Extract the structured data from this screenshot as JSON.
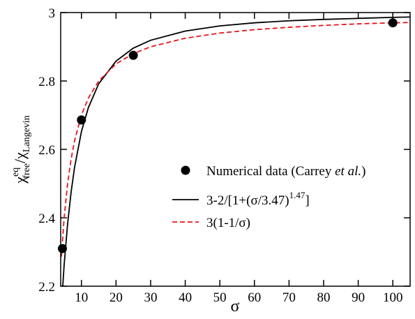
{
  "chart_data": {
    "type": "scatter+line",
    "xlabel": "σ",
    "ylabel": [
      "χ",
      "eq",
      "free",
      "/χ",
      "Langevin"
    ],
    "xlim": [
      4,
      105
    ],
    "ylim": [
      2.2,
      3
    ],
    "xticks": [
      10,
      20,
      30,
      40,
      50,
      60,
      70,
      80,
      90,
      100
    ],
    "yticks": [
      2.2,
      2.4,
      2.6,
      2.8,
      3
    ],
    "points": {
      "name": [
        "Numerical data (Carrey ",
        "et al.",
        ")"
      ],
      "color": "#000000",
      "x": [
        4.5,
        10,
        25,
        100
      ],
      "values": [
        2.31,
        2.686,
        2.875,
        2.97
      ]
    },
    "x": [
      4.2,
      5,
      6,
      7,
      8,
      10,
      12,
      15,
      20,
      25,
      30,
      40,
      50,
      60,
      70,
      80,
      90,
      100,
      105
    ],
    "series": [
      {
        "name": [
          "3-2/[1+(σ/3.47)",
          "1.47",
          "]"
        ],
        "color": "#000000",
        "dash": false,
        "values": [
          2.139,
          2.262,
          2.382,
          2.474,
          2.547,
          2.652,
          2.722,
          2.792,
          2.858,
          2.896,
          2.919,
          2.946,
          2.961,
          2.97,
          2.976,
          2.98,
          2.983,
          2.986,
          2.987
        ]
      },
      {
        "name": [
          "3(1-1/σ)"
        ],
        "color": "#e8141c",
        "dash": true,
        "values": [
          2.286,
          2.4,
          2.5,
          2.571,
          2.625,
          2.7,
          2.75,
          2.8,
          2.85,
          2.88,
          2.9,
          2.925,
          2.94,
          2.95,
          2.957,
          2.9625,
          2.967,
          2.97,
          2.971
        ]
      }
    ]
  }
}
